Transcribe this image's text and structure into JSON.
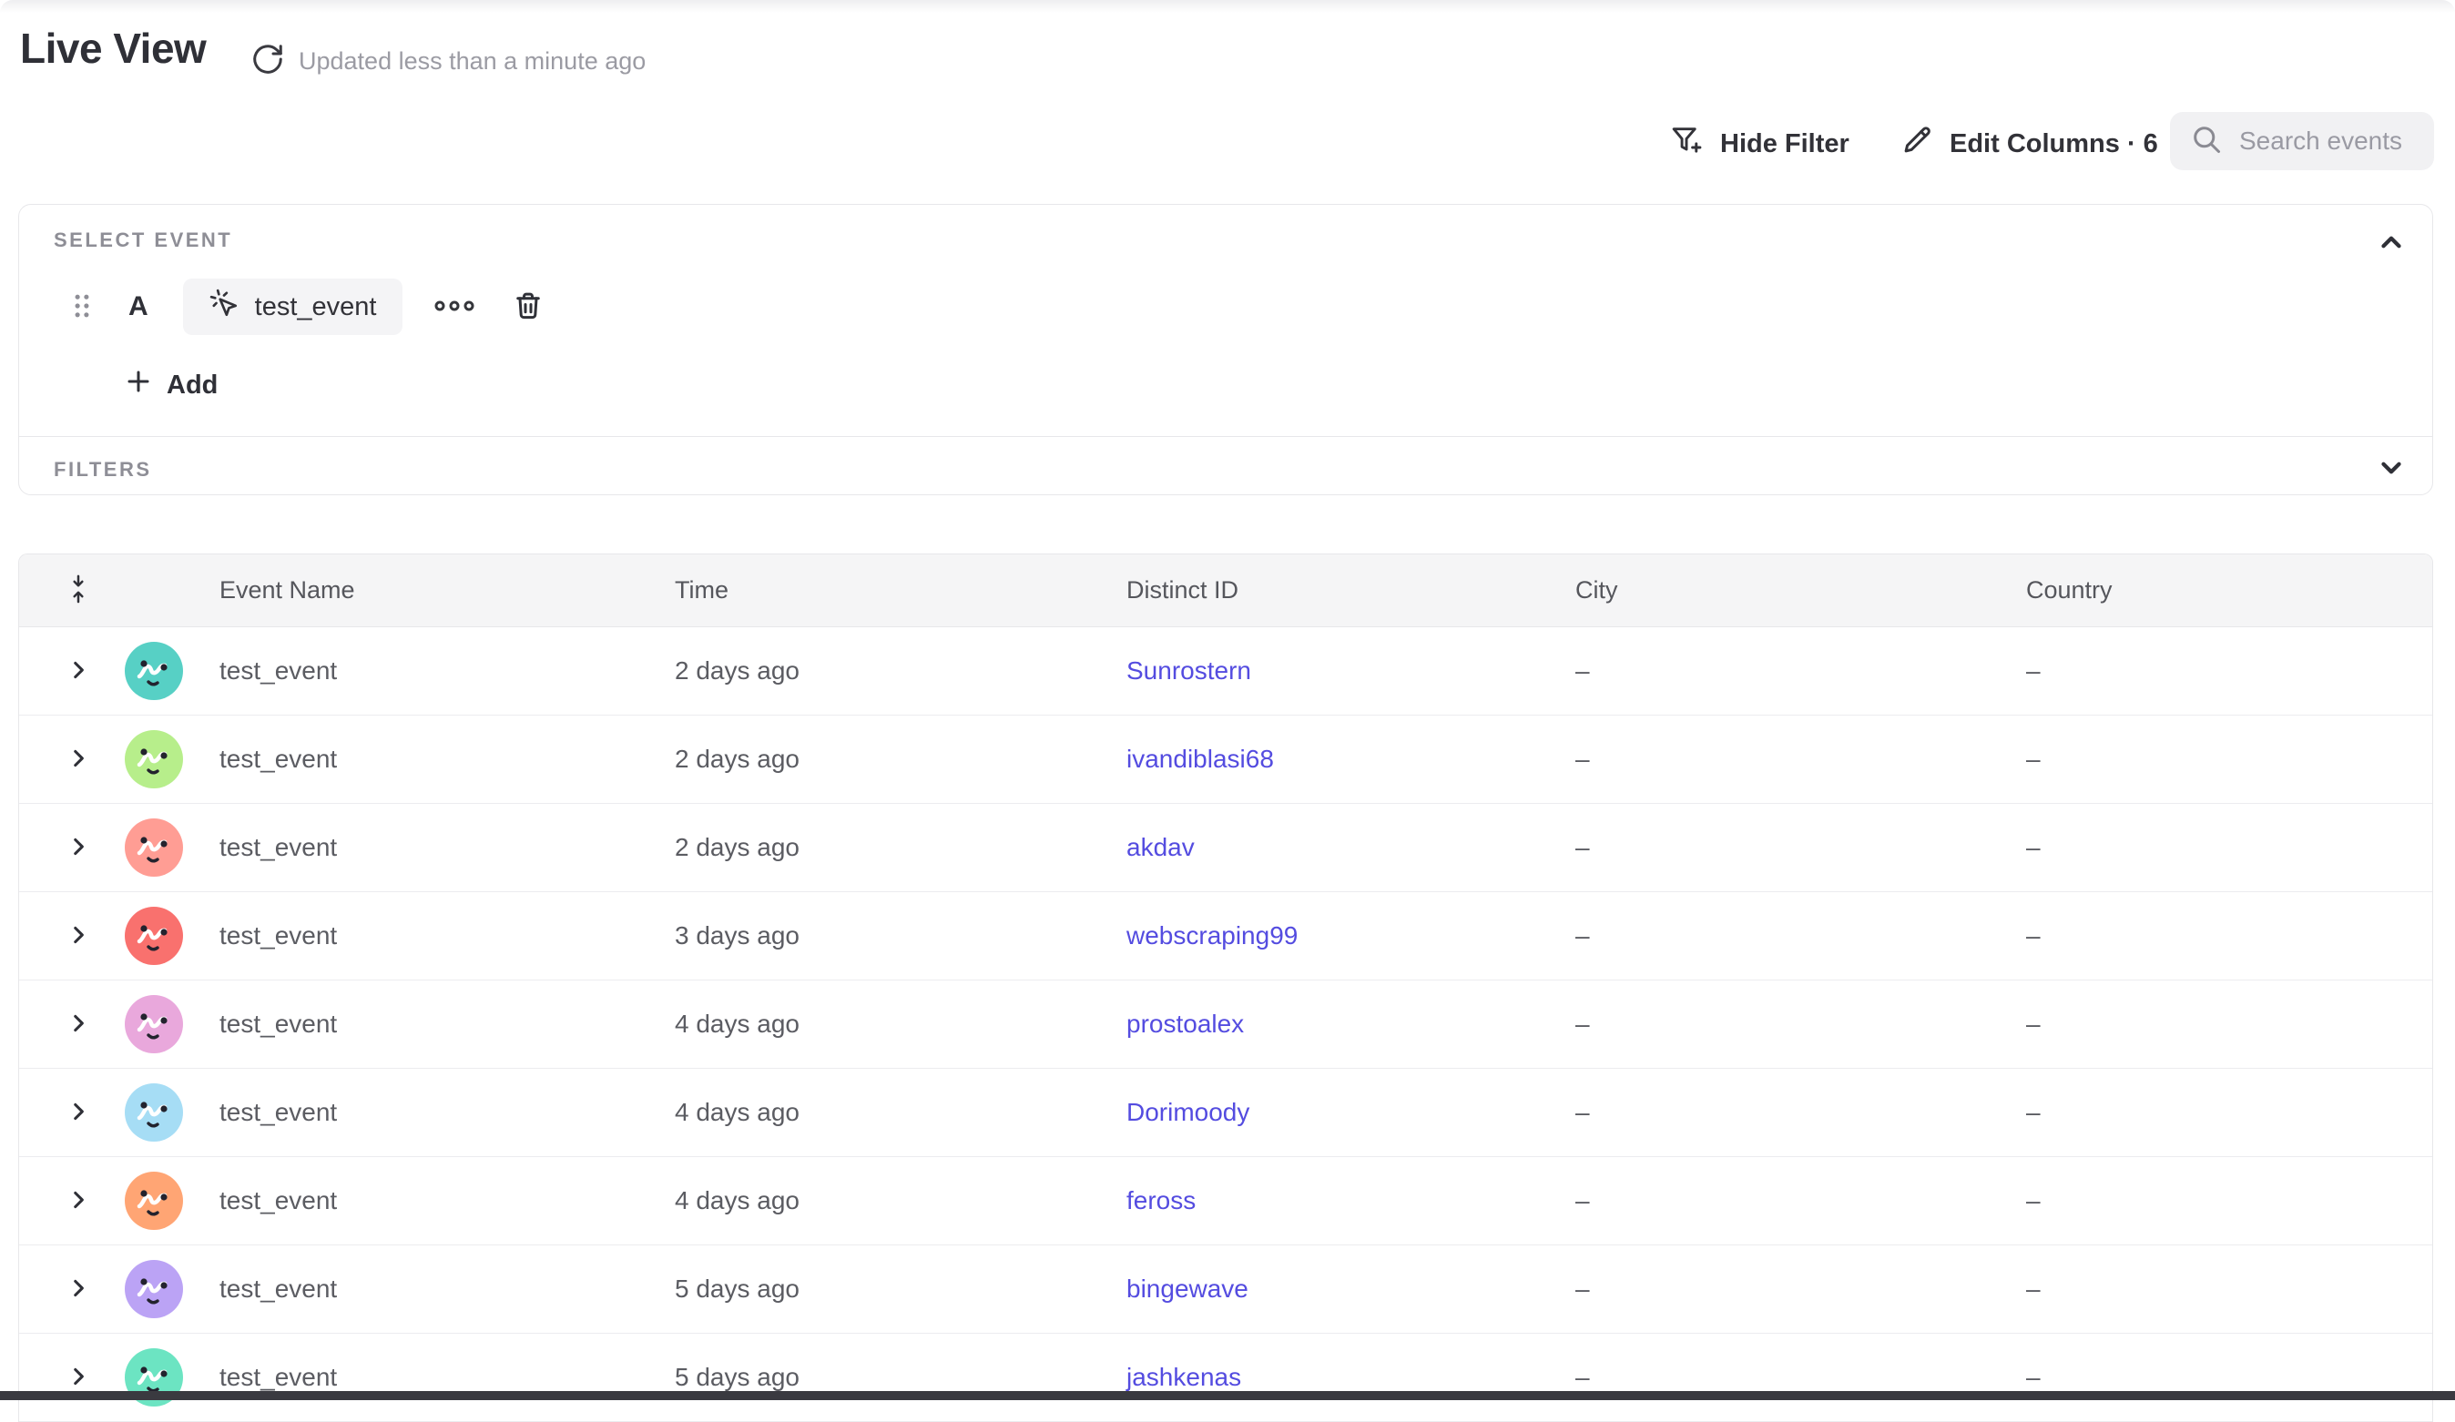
{
  "header": {
    "title": "Live View",
    "updated": "Updated less than a minute ago"
  },
  "toolbar": {
    "hide_filter": "Hide Filter",
    "edit_columns": "Edit Columns · 6",
    "search_placeholder": "Search events"
  },
  "query_panel": {
    "select_event_label": "SELECT EVENT",
    "event_letter": "A",
    "event_name": "test_event",
    "add_label": "Add",
    "filters_label": "FILTERS"
  },
  "table": {
    "columns": [
      "Event Name",
      "Time",
      "Distinct ID",
      "City",
      "Country"
    ],
    "rows": [
      {
        "event": "test_event",
        "time": "2 days ago",
        "distinct_id": "Sunrostern",
        "city": "–",
        "country": "–",
        "avatar_color": "#57d0c5"
      },
      {
        "event": "test_event",
        "time": "2 days ago",
        "distinct_id": "ivandiblasi68",
        "city": "–",
        "country": "–",
        "avatar_color": "#b7ee8b"
      },
      {
        "event": "test_event",
        "time": "2 days ago",
        "distinct_id": "akdav",
        "city": "–",
        "country": "–",
        "avatar_color": "#ff9d94"
      },
      {
        "event": "test_event",
        "time": "3 days ago",
        "distinct_id": "webscraping99",
        "city": "–",
        "country": "–",
        "avatar_color": "#f9716e"
      },
      {
        "event": "test_event",
        "time": "4 days ago",
        "distinct_id": "prostoalex",
        "city": "–",
        "country": "–",
        "avatar_color": "#e9a8dc"
      },
      {
        "event": "test_event",
        "time": "4 days ago",
        "distinct_id": "Dorimoody",
        "city": "–",
        "country": "–",
        "avatar_color": "#a6ddf5"
      },
      {
        "event": "test_event",
        "time": "4 days ago",
        "distinct_id": "feross",
        "city": "–",
        "country": "–",
        "avatar_color": "#ffa574"
      },
      {
        "event": "test_event",
        "time": "5 days ago",
        "distinct_id": "bingewave",
        "city": "–",
        "country": "–",
        "avatar_color": "#bba3f5"
      },
      {
        "event": "test_event",
        "time": "5 days ago",
        "distinct_id": "jashkenas",
        "city": "–",
        "country": "–",
        "avatar_color": "#6ce4c2"
      }
    ]
  },
  "colors": {
    "link": "#544ce0",
    "table_header_bg": "#f5f5f6",
    "bottom_bar": "#3a3a40"
  }
}
